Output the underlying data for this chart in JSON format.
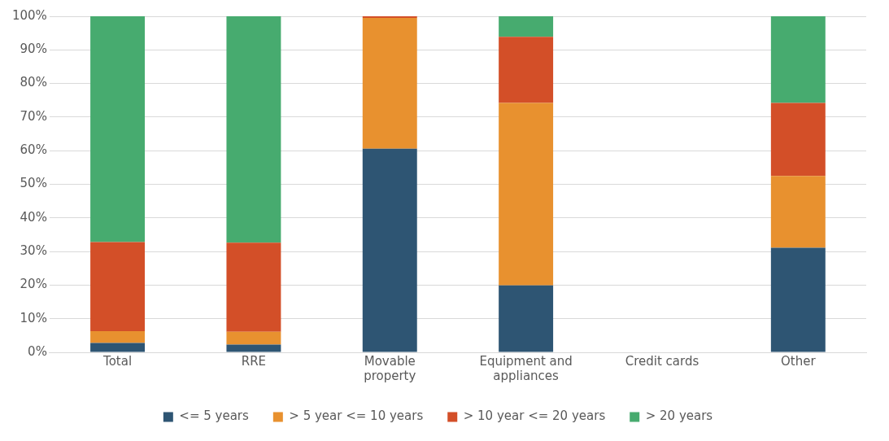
{
  "chart_data": {
    "type": "bar",
    "stacked": true,
    "categories": [
      "Total",
      "RRE",
      "Movable property",
      "Equipment and appliances",
      "Credit cards",
      "Other"
    ],
    "series": [
      {
        "name": "<= 5 years",
        "color": "#2e5573",
        "values": [
          2.8,
          2.3,
          60.6,
          19.9,
          null,
          31.1
        ]
      },
      {
        "name": "> 5 year <= 10 years",
        "color": "#e8912f",
        "values": [
          3.5,
          3.8,
          38.9,
          54.3,
          null,
          21.4
        ]
      },
      {
        "name": "> 10 year <= 20 years",
        "color": "#d34f28",
        "values": [
          26.5,
          26.5,
          0.5,
          19.7,
          null,
          21.7
        ]
      },
      {
        "name": "> 20 years",
        "color": "#47ab6f",
        "values": [
          67.2,
          67.4,
          0,
          6.1,
          null,
          25.8
        ]
      }
    ],
    "ylim": [
      0,
      100
    ],
    "yticks": [
      {
        "value": 0,
        "label": "0%"
      },
      {
        "value": 10,
        "label": "10%"
      },
      {
        "value": 20,
        "label": "20%"
      },
      {
        "value": 30,
        "label": "30%"
      },
      {
        "value": 40,
        "label": "40%"
      },
      {
        "value": 50,
        "label": "50%"
      },
      {
        "value": 60,
        "label": "60%"
      },
      {
        "value": 70,
        "label": "70%"
      },
      {
        "value": 80,
        "label": "80%"
      },
      {
        "value": 90,
        "label": "90%"
      },
      {
        "value": 100,
        "label": "100%"
      }
    ],
    "grid": "y",
    "legend": "bottom"
  }
}
